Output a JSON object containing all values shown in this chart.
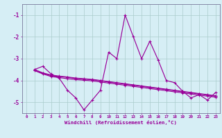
{
  "xlabel": "Windchill (Refroidissement éolien,°C)",
  "background_color": "#d6eef5",
  "line_color": "#990099",
  "grid_color": "#aacccc",
  "xlim": [
    -0.5,
    23.5
  ],
  "ylim": [
    -5.5,
    -0.5
  ],
  "yticks": [
    -5,
    -4,
    -3,
    -2,
    -1
  ],
  "xticks": [
    0,
    1,
    2,
    3,
    4,
    5,
    6,
    7,
    8,
    9,
    10,
    11,
    12,
    13,
    14,
    15,
    16,
    17,
    18,
    19,
    20,
    21,
    22,
    23
  ],
  "main_y": [
    null,
    -3.5,
    -3.35,
    -3.7,
    -3.9,
    -4.45,
    -4.8,
    -5.35,
    -4.9,
    -4.45,
    -2.7,
    -3.0,
    -1.0,
    -2.0,
    -3.0,
    -2.2,
    -3.05,
    -4.0,
    -4.1,
    -4.5,
    -4.8,
    -4.65,
    -4.9,
    -4.55
  ],
  "line2_y": [
    null,
    -3.55,
    -3.7,
    -3.82,
    -3.87,
    -3.92,
    -3.96,
    -3.99,
    -4.02,
    -4.07,
    -4.12,
    -4.17,
    -4.22,
    -4.27,
    -4.32,
    -4.37,
    -4.42,
    -4.47,
    -4.52,
    -4.57,
    -4.62,
    -4.67,
    -4.72,
    -4.77
  ],
  "line3_y": [
    null,
    -3.52,
    -3.67,
    -3.78,
    -3.82,
    -3.86,
    -3.91,
    -3.94,
    -3.97,
    -4.02,
    -4.07,
    -4.12,
    -4.17,
    -4.22,
    -4.27,
    -4.32,
    -4.37,
    -4.42,
    -4.47,
    -4.52,
    -4.57,
    -4.62,
    -4.67,
    -4.72
  ],
  "line4_y": [
    null,
    -3.5,
    -3.65,
    -3.75,
    -3.8,
    -3.84,
    -3.89,
    -3.92,
    -3.95,
    -4.0,
    -4.05,
    -4.1,
    -4.15,
    -4.2,
    -4.25,
    -4.3,
    -4.35,
    -4.4,
    -4.45,
    -4.5,
    -4.55,
    -4.6,
    -4.65,
    -4.7
  ]
}
